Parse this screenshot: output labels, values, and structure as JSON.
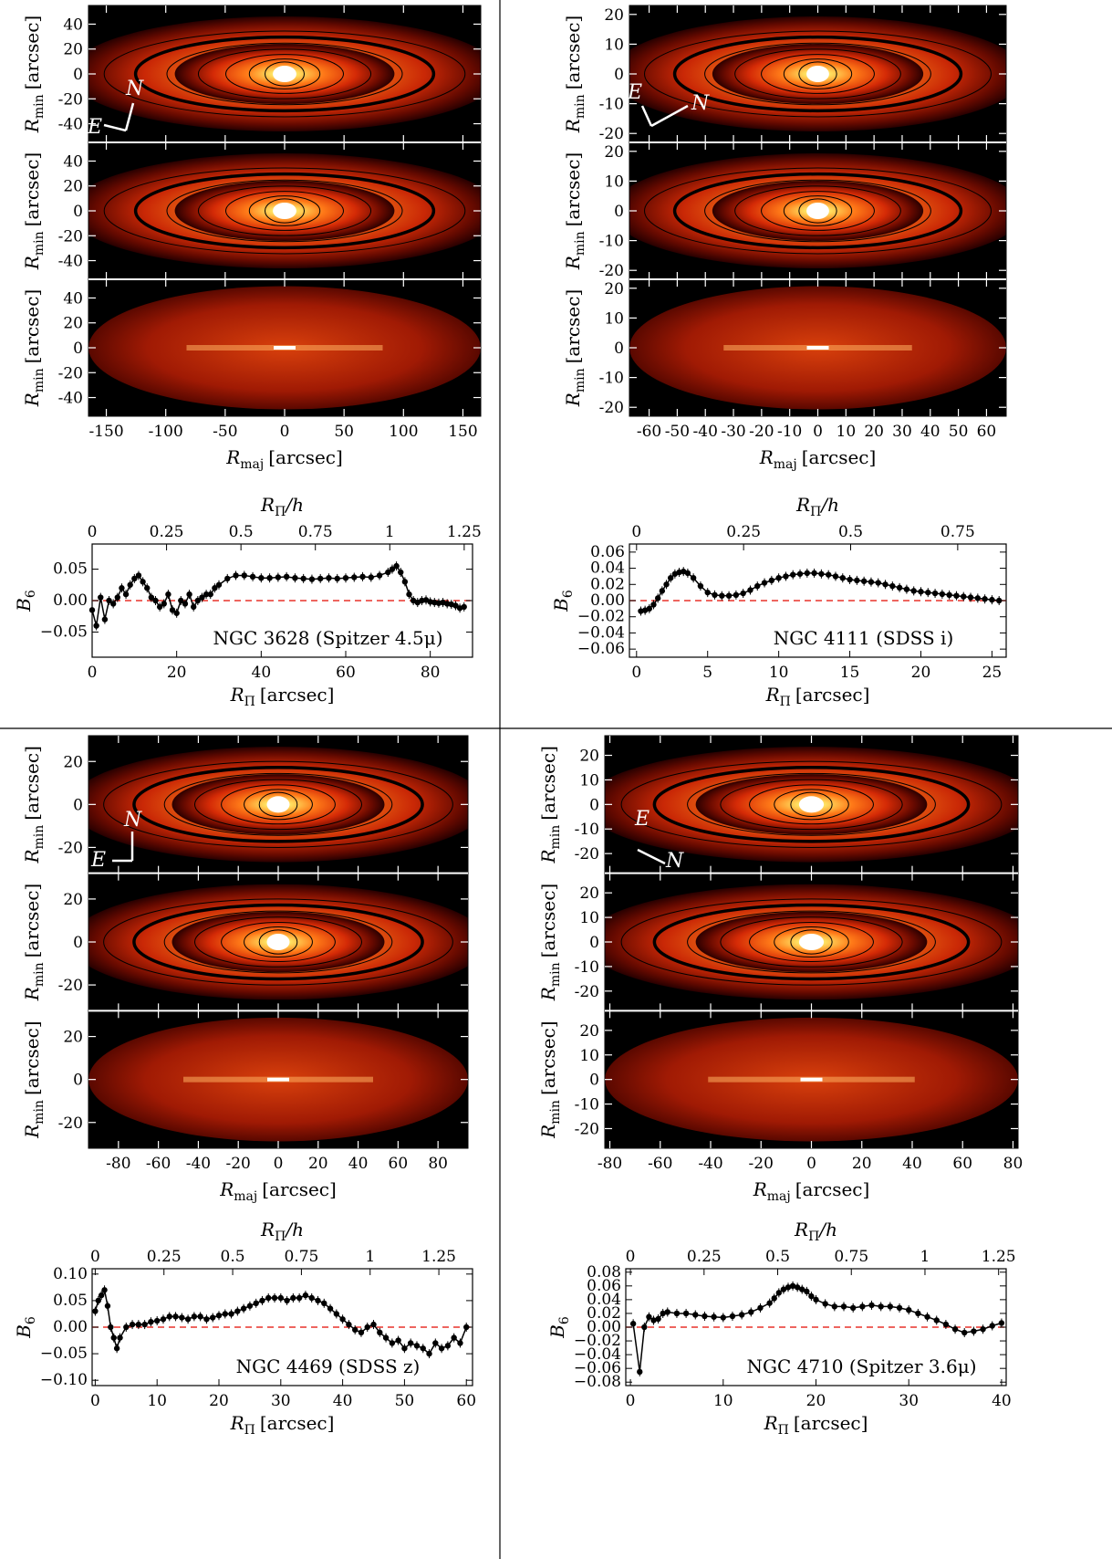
{
  "panels": [
    {
      "image_axes": {
        "xlim": [
          -165,
          165
        ],
        "ylim": [
          -55,
          55
        ],
        "xticks": [
          -150,
          -100,
          -50,
          0,
          50,
          100,
          150
        ],
        "yticks": [
          -40,
          -20,
          0,
          20,
          40
        ],
        "xlabel_main": "R",
        "xlabel_sub": "maj",
        "xlabel_unit": "[arcsec]",
        "ylabel_main": "R",
        "ylabel_sub": "min",
        "ylabel_unit": "[arcsec]",
        "compass": {
          "E": "E",
          "N": "N"
        }
      },
      "b6": {
        "annotation": "NGC 3628 (Spitzer 4.5μ)",
        "xlim": [
          0,
          90
        ],
        "xticks": [
          0,
          20,
          40,
          60,
          80
        ],
        "ylim": [
          -0.09,
          0.09
        ],
        "yticks": [
          -0.05,
          0.0,
          0.05
        ],
        "ytick_labels": [
          "−0.05",
          "0.00",
          "0.05"
        ],
        "top_ticks": [
          0,
          0.25,
          0.5,
          0.75,
          1,
          1.25
        ],
        "top_scale": 0.0142
      }
    },
    {
      "image_axes": {
        "xlim": [
          -67,
          67
        ],
        "ylim": [
          -23,
          23
        ],
        "xticks": [
          -60,
          -50,
          -40,
          -30,
          -20,
          -10,
          0,
          10,
          20,
          30,
          40,
          50,
          60
        ],
        "yticks": [
          -20,
          -10,
          0,
          10,
          20
        ],
        "xlabel_main": "R",
        "xlabel_sub": "maj",
        "xlabel_unit": "[arcsec]",
        "ylabel_main": "R",
        "ylabel_sub": "min",
        "ylabel_unit": "[arcsec]",
        "compass": {
          "E": "E",
          "N": "N"
        }
      },
      "b6": {
        "annotation": "NGC 4111 (SDSS i)",
        "xlim": [
          -0.5,
          26
        ],
        "xticks": [
          0,
          5,
          10,
          15,
          20,
          25
        ],
        "ylim": [
          -0.07,
          0.07
        ],
        "yticks": [
          -0.06,
          -0.04,
          -0.02,
          0.0,
          0.02,
          0.04,
          0.06
        ],
        "ytick_labels": [
          "−0.06",
          "−0.04",
          "−0.02",
          "0.00",
          "0.02",
          "0.04",
          "0.06"
        ],
        "top_ticks": [
          0,
          0.25,
          0.5,
          0.75
        ],
        "top_scale": 0.0332
      }
    },
    {
      "image_axes": {
        "xlim": [
          -95,
          95
        ],
        "ylim": [
          -32,
          32
        ],
        "xticks": [
          -80,
          -60,
          -40,
          -20,
          0,
          20,
          40,
          60,
          80
        ],
        "yticks": [
          -20,
          0,
          20
        ],
        "xlabel_main": "R",
        "xlabel_sub": "maj",
        "xlabel_unit": "[arcsec]",
        "ylabel_main": "R",
        "ylabel_sub": "min",
        "ylabel_unit": "[arcsec]",
        "compass": {
          "E": "E",
          "N": "N"
        }
      },
      "b6": {
        "annotation": "NGC 4469 (SDSS z)",
        "xlim": [
          -0.5,
          61
        ],
        "xticks": [
          0,
          10,
          20,
          30,
          40,
          50,
          60
        ],
        "ylim": [
          -0.11,
          0.11
        ],
        "yticks": [
          -0.1,
          -0.05,
          0.0,
          0.05,
          0.1
        ],
        "ytick_labels": [
          "−0.10",
          "−0.05",
          "0.00",
          "0.05",
          "0.10"
        ],
        "top_ticks": [
          0,
          0.25,
          0.5,
          0.75,
          1,
          1.25
        ],
        "top_scale": 0.0225
      }
    },
    {
      "image_axes": {
        "xlim": [
          -82,
          82
        ],
        "ylim": [
          -28,
          28
        ],
        "xticks": [
          -80,
          -60,
          -40,
          -20,
          0,
          20,
          40,
          60,
          80
        ],
        "yticks": [
          -20,
          -10,
          0,
          10,
          20
        ],
        "xlabel_main": "R",
        "xlabel_sub": "maj",
        "xlabel_unit": "[arcsec]",
        "ylabel_main": "R",
        "ylabel_sub": "min",
        "ylabel_unit": "[arcsec]",
        "compass": {
          "E": "E",
          "N": "N"
        }
      },
      "b6": {
        "annotation": "NGC 4710 (Spitzer 3.6μ)",
        "xlim": [
          -0.5,
          40.5
        ],
        "xticks": [
          0,
          10,
          20,
          30,
          40
        ],
        "ylim": [
          -0.085,
          0.085
        ],
        "yticks": [
          -0.08,
          -0.06,
          -0.04,
          -0.02,
          0.0,
          0.02,
          0.04,
          0.06,
          0.08
        ],
        "ytick_labels": [
          "−0.08",
          "−0.06",
          "−0.04",
          "−0.02",
          "0.00",
          "0.02",
          "0.04",
          "0.06",
          "0.08"
        ],
        "top_ticks": [
          0,
          0.25,
          0.5,
          0.75,
          1,
          1.25
        ],
        "top_scale": 0.0315
      }
    }
  ],
  "b6_labels": {
    "ylabel_main": "B",
    "ylabel_sub": "6",
    "xlabel_main": "R",
    "xlabel_sub": "Π",
    "xlabel_unit": "[arcsec]",
    "top_main": "R",
    "top_sub": "Π",
    "top_suffix": "/h"
  },
  "chart_data": [
    {
      "type": "line",
      "galaxy": "NGC 3628 (Spitzer 4.5μ)",
      "xlabel": "RΠ [arcsec]",
      "ylabel": "B6",
      "top_axis_label": "RΠ/h",
      "xlim": [
        0,
        90
      ],
      "ylim": [
        -0.09,
        0.09
      ],
      "x": [
        0,
        1,
        2,
        3,
        4,
        5,
        6,
        7,
        8,
        9,
        10,
        11,
        12,
        13,
        14,
        15,
        16,
        17,
        18,
        19,
        20,
        21,
        22,
        23,
        24,
        25,
        26,
        27,
        28,
        29,
        30,
        32,
        34,
        36,
        38,
        40,
        42,
        44,
        46,
        48,
        50,
        52,
        54,
        56,
        58,
        60,
        62,
        64,
        66,
        68,
        70,
        71,
        72,
        73,
        74,
        75,
        76,
        77,
        78,
        79,
        80,
        81,
        82,
        83,
        84,
        85,
        86,
        87,
        88
      ],
      "y": [
        -0.015,
        -0.04,
        0.005,
        -0.03,
        0.0,
        -0.005,
        0.005,
        0.02,
        0.01,
        0.025,
        0.035,
        0.04,
        0.03,
        0.02,
        0.005,
        0.0,
        -0.01,
        -0.005,
        0.01,
        -0.015,
        -0.02,
        0.0,
        -0.005,
        0.01,
        -0.01,
        0.0,
        0.005,
        0.01,
        0.01,
        0.02,
        0.025,
        0.035,
        0.04,
        0.04,
        0.038,
        0.036,
        0.036,
        0.037,
        0.038,
        0.036,
        0.035,
        0.034,
        0.035,
        0.036,
        0.035,
        0.036,
        0.037,
        0.038,
        0.037,
        0.04,
        0.045,
        0.05,
        0.055,
        0.045,
        0.03,
        0.01,
        0.0,
        -0.003,
        0.0,
        0.001,
        -0.002,
        -0.003,
        -0.004,
        -0.003,
        -0.005,
        -0.006,
        -0.008,
        -0.012,
        -0.01
      ],
      "reference_line": 0
    },
    {
      "type": "line",
      "galaxy": "NGC 4111 (SDSS i)",
      "xlabel": "RΠ [arcsec]",
      "ylabel": "B6",
      "top_axis_label": "RΠ/h",
      "xlim": [
        -0.5,
        26
      ],
      "ylim": [
        -0.07,
        0.07
      ],
      "x": [
        0.3,
        0.6,
        0.9,
        1.2,
        1.5,
        1.8,
        2.1,
        2.4,
        2.7,
        3.0,
        3.3,
        3.6,
        4.0,
        4.5,
        5.0,
        5.5,
        6.0,
        6.5,
        7.0,
        7.5,
        8.0,
        8.5,
        9.0,
        9.5,
        10.0,
        10.5,
        11.0,
        11.5,
        12.0,
        12.5,
        13.0,
        13.5,
        14.0,
        14.5,
        15.0,
        15.5,
        16.0,
        16.5,
        17.0,
        17.5,
        18.0,
        18.5,
        19.0,
        19.5,
        20.0,
        20.5,
        21.0,
        21.5,
        22.0,
        22.5,
        23.0,
        23.5,
        24.0,
        24.5,
        25.0,
        25.5
      ],
      "y": [
        -0.013,
        -0.012,
        -0.01,
        -0.005,
        0.003,
        0.012,
        0.02,
        0.028,
        0.033,
        0.035,
        0.036,
        0.034,
        0.028,
        0.018,
        0.01,
        0.007,
        0.006,
        0.006,
        0.007,
        0.009,
        0.013,
        0.018,
        0.022,
        0.025,
        0.028,
        0.03,
        0.032,
        0.033,
        0.034,
        0.034,
        0.033,
        0.032,
        0.03,
        0.028,
        0.026,
        0.025,
        0.024,
        0.023,
        0.022,
        0.02,
        0.018,
        0.016,
        0.014,
        0.012,
        0.011,
        0.01,
        0.009,
        0.008,
        0.007,
        0.006,
        0.005,
        0.004,
        0.003,
        0.002,
        0.001,
        0.0
      ],
      "reference_line": 0
    },
    {
      "type": "line",
      "galaxy": "NGC 4469 (SDSS z)",
      "xlabel": "RΠ [arcsec]",
      "ylabel": "B6",
      "top_axis_label": "RΠ/h",
      "xlim": [
        -0.5,
        61
      ],
      "ylim": [
        -0.11,
        0.11
      ],
      "x": [
        0,
        0.5,
        1.0,
        1.5,
        2.0,
        2.5,
        3.0,
        3.5,
        4.0,
        5.0,
        6.0,
        7.0,
        8.0,
        9.0,
        10,
        11,
        12,
        13,
        14,
        15,
        16,
        17,
        18,
        19,
        20,
        21,
        22,
        23,
        24,
        25,
        26,
        27,
        28,
        29,
        30,
        31,
        32,
        33,
        34,
        35,
        36,
        37,
        38,
        39,
        40,
        41,
        42,
        43,
        44,
        45,
        46,
        47,
        48,
        49,
        50,
        51,
        52,
        53,
        54,
        55,
        56,
        57,
        58,
        59,
        60
      ],
      "y": [
        0.03,
        0.05,
        0.06,
        0.07,
        0.04,
        0.0,
        -0.02,
        -0.04,
        -0.02,
        0.0,
        0.005,
        0.005,
        0.005,
        0.01,
        0.012,
        0.015,
        0.02,
        0.02,
        0.018,
        0.015,
        0.02,
        0.02,
        0.015,
        0.018,
        0.022,
        0.025,
        0.025,
        0.03,
        0.035,
        0.04,
        0.045,
        0.05,
        0.055,
        0.055,
        0.055,
        0.05,
        0.055,
        0.055,
        0.06,
        0.055,
        0.05,
        0.045,
        0.035,
        0.025,
        0.015,
        0.005,
        -0.005,
        -0.01,
        0.0,
        0.005,
        -0.01,
        -0.02,
        -0.03,
        -0.025,
        -0.04,
        -0.03,
        -0.035,
        -0.04,
        -0.05,
        -0.03,
        -0.04,
        -0.035,
        -0.02,
        -0.03,
        0.0
      ],
      "reference_line": 0
    },
    {
      "type": "line",
      "galaxy": "NGC 4710 (Spitzer 3.6μ)",
      "xlabel": "RΠ [arcsec]",
      "ylabel": "B6",
      "top_axis_label": "RΠ/h",
      "xlim": [
        -0.5,
        40.5
      ],
      "ylim": [
        -0.085,
        0.085
      ],
      "x": [
        0.3,
        1.0,
        1.5,
        2.0,
        2.5,
        3.0,
        3.5,
        4.0,
        5.0,
        6.0,
        7.0,
        8.0,
        9.0,
        10.0,
        11.0,
        12.0,
        13.0,
        14.0,
        15.0,
        15.5,
        16.0,
        16.5,
        17.0,
        17.5,
        18.0,
        18.5,
        19.0,
        19.5,
        20.0,
        21.0,
        22.0,
        23.0,
        24.0,
        25.0,
        26.0,
        27.0,
        28.0,
        29.0,
        30.0,
        31.0,
        32.0,
        33.0,
        34.0,
        35.0,
        36.0,
        37.0,
        38.0,
        39.0,
        40.0
      ],
      "y": [
        0.005,
        -0.065,
        0.0,
        0.015,
        0.01,
        0.012,
        0.02,
        0.022,
        0.02,
        0.02,
        0.018,
        0.016,
        0.015,
        0.014,
        0.016,
        0.018,
        0.022,
        0.028,
        0.035,
        0.042,
        0.05,
        0.055,
        0.058,
        0.06,
        0.058,
        0.055,
        0.052,
        0.045,
        0.04,
        0.034,
        0.03,
        0.03,
        0.028,
        0.03,
        0.032,
        0.03,
        0.03,
        0.028,
        0.025,
        0.02,
        0.015,
        0.01,
        0.004,
        -0.003,
        -0.008,
        -0.006,
        -0.003,
        0.002,
        0.006
      ],
      "reference_line": 0
    }
  ]
}
